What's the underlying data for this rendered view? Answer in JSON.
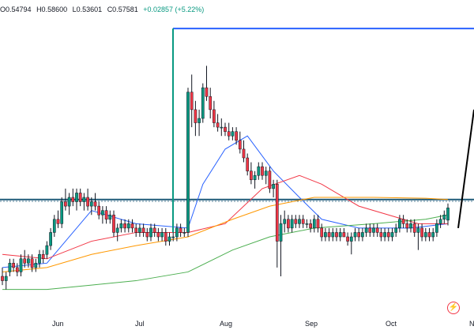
{
  "legend": {
    "open": "O0.54794",
    "high": "H0.58600",
    "low": "L0.53601",
    "close": "C0.57581",
    "change": "+0.02857 (+5.22%)"
  },
  "x_axis": [
    "Jun",
    "Jul",
    "Aug",
    "Sep",
    "Oct",
    "N"
  ],
  "colors": {
    "up": "#089981",
    "down": "#f23645",
    "wick": "#131722",
    "ma_blue": "#2962ff",
    "ma_red": "#f23645",
    "ma_orange": "#ff9800",
    "ma_green": "#4caf50",
    "drawing_blue": "#2962ff",
    "hline": "#1e5a78",
    "trendline": "#000000"
  },
  "icons": {
    "bolt": "lightning-bolt-icon"
  },
  "chart_data": {
    "type": "candlestick",
    "price_range": [
      0.33,
      1.05
    ],
    "date_range": [
      "May 9",
      "Nov 1"
    ],
    "x_labels": [
      "Jun",
      "Jul",
      "Aug",
      "Sep",
      "Oct",
      "N"
    ],
    "last_candle": {
      "open": 0.54794,
      "high": 0.586,
      "low": 0.53601,
      "close": 0.57581,
      "change": 0.02857,
      "change_pct": 5.22
    },
    "horizontal_levels": [
      0.595,
      0.591,
      0.985
    ],
    "rectangle": {
      "start": "Jul 11",
      "top": 0.985
    },
    "trendline": {
      "from": [
        "Oct 27",
        0.53
      ],
      "to": [
        "Nov 1",
        0.8
      ]
    },
    "candles": [
      [
        0.42,
        0.44,
        0.4,
        0.41
      ],
      [
        0.41,
        0.43,
        0.39,
        0.42
      ],
      [
        0.43,
        0.46,
        0.42,
        0.45
      ],
      [
        0.45,
        0.46,
        0.43,
        0.44
      ],
      [
        0.44,
        0.45,
        0.42,
        0.43
      ],
      [
        0.43,
        0.47,
        0.42,
        0.46
      ],
      [
        0.46,
        0.48,
        0.44,
        0.45
      ],
      [
        0.45,
        0.47,
        0.44,
        0.46
      ],
      [
        0.46,
        0.47,
        0.43,
        0.44
      ],
      [
        0.44,
        0.46,
        0.43,
        0.45
      ],
      [
        0.45,
        0.48,
        0.44,
        0.47
      ],
      [
        0.47,
        0.48,
        0.45,
        0.46
      ],
      [
        0.47,
        0.5,
        0.46,
        0.49
      ],
      [
        0.49,
        0.53,
        0.48,
        0.52
      ],
      [
        0.52,
        0.56,
        0.51,
        0.55
      ],
      [
        0.55,
        0.57,
        0.53,
        0.54
      ],
      [
        0.54,
        0.6,
        0.53,
        0.59
      ],
      [
        0.59,
        0.62,
        0.57,
        0.58
      ],
      [
        0.58,
        0.61,
        0.56,
        0.6
      ],
      [
        0.6,
        0.62,
        0.58,
        0.59
      ],
      [
        0.59,
        0.62,
        0.57,
        0.61
      ],
      [
        0.61,
        0.62,
        0.58,
        0.59
      ],
      [
        0.59,
        0.61,
        0.57,
        0.6
      ],
      [
        0.6,
        0.62,
        0.57,
        0.58
      ],
      [
        0.58,
        0.6,
        0.56,
        0.59
      ],
      [
        0.59,
        0.61,
        0.57,
        0.58
      ],
      [
        0.58,
        0.59,
        0.55,
        0.56
      ],
      [
        0.56,
        0.58,
        0.54,
        0.57
      ],
      [
        0.57,
        0.58,
        0.54,
        0.55
      ],
      [
        0.55,
        0.57,
        0.54,
        0.56
      ],
      [
        0.56,
        0.57,
        0.51,
        0.52
      ],
      [
        0.52,
        0.54,
        0.5,
        0.53
      ],
      [
        0.53,
        0.55,
        0.52,
        0.54
      ],
      [
        0.54,
        0.55,
        0.52,
        0.53
      ],
      [
        0.53,
        0.55,
        0.52,
        0.54
      ],
      [
        0.54,
        0.55,
        0.52,
        0.53
      ],
      [
        0.53,
        0.54,
        0.51,
        0.52
      ],
      [
        0.52,
        0.54,
        0.51,
        0.53
      ],
      [
        0.53,
        0.54,
        0.51,
        0.52
      ],
      [
        0.52,
        0.53,
        0.5,
        0.51
      ],
      [
        0.51,
        0.54,
        0.5,
        0.53
      ],
      [
        0.53,
        0.54,
        0.51,
        0.52
      ],
      [
        0.52,
        0.53,
        0.5,
        0.51
      ],
      [
        0.51,
        0.53,
        0.5,
        0.52
      ],
      [
        0.52,
        0.53,
        0.49,
        0.5
      ],
      [
        0.5,
        0.52,
        0.49,
        0.51
      ],
      [
        0.51,
        0.52,
        0.5,
        0.51
      ],
      [
        0.51,
        0.54,
        0.5,
        0.53
      ],
      [
        0.53,
        0.54,
        0.51,
        0.52
      ],
      [
        0.52,
        0.53,
        0.51,
        0.52
      ],
      [
        0.52,
        0.85,
        0.51,
        0.84
      ],
      [
        0.84,
        0.88,
        0.76,
        0.8
      ],
      [
        0.8,
        0.82,
        0.74,
        0.77
      ],
      [
        0.77,
        0.8,
        0.74,
        0.78
      ],
      [
        0.78,
        0.86,
        0.77,
        0.85
      ],
      [
        0.85,
        0.9,
        0.82,
        0.83
      ],
      [
        0.83,
        0.85,
        0.78,
        0.8
      ],
      [
        0.8,
        0.82,
        0.76,
        0.77
      ],
      [
        0.77,
        0.79,
        0.75,
        0.76
      ],
      [
        0.76,
        0.78,
        0.74,
        0.76
      ],
      [
        0.76,
        0.77,
        0.74,
        0.75
      ],
      [
        0.75,
        0.77,
        0.73,
        0.74
      ],
      [
        0.74,
        0.76,
        0.73,
        0.75
      ],
      [
        0.75,
        0.76,
        0.72,
        0.73
      ],
      [
        0.73,
        0.75,
        0.7,
        0.71
      ],
      [
        0.71,
        0.73,
        0.68,
        0.69
      ],
      [
        0.69,
        0.7,
        0.65,
        0.66
      ],
      [
        0.66,
        0.68,
        0.63,
        0.64
      ],
      [
        0.64,
        0.66,
        0.62,
        0.65
      ],
      [
        0.65,
        0.68,
        0.64,
        0.67
      ],
      [
        0.67,
        0.68,
        0.64,
        0.65
      ],
      [
        0.65,
        0.67,
        0.63,
        0.66
      ],
      [
        0.66,
        0.67,
        0.61,
        0.62
      ],
      [
        0.62,
        0.64,
        0.6,
        0.63
      ],
      [
        0.63,
        0.64,
        0.44,
        0.5
      ],
      [
        0.5,
        0.56,
        0.42,
        0.54
      ],
      [
        0.54,
        0.57,
        0.52,
        0.55
      ],
      [
        0.55,
        0.56,
        0.52,
        0.53
      ],
      [
        0.53,
        0.56,
        0.52,
        0.55
      ],
      [
        0.55,
        0.56,
        0.53,
        0.54
      ],
      [
        0.54,
        0.56,
        0.53,
        0.55
      ],
      [
        0.55,
        0.56,
        0.53,
        0.54
      ],
      [
        0.54,
        0.55,
        0.53,
        0.54
      ],
      [
        0.54,
        0.55,
        0.52,
        0.53
      ],
      [
        0.53,
        0.56,
        0.52,
        0.55
      ],
      [
        0.55,
        0.56,
        0.52,
        0.53
      ],
      [
        0.53,
        0.54,
        0.5,
        0.51
      ],
      [
        0.51,
        0.53,
        0.5,
        0.52
      ],
      [
        0.52,
        0.53,
        0.5,
        0.51
      ],
      [
        0.51,
        0.53,
        0.5,
        0.52
      ],
      [
        0.52,
        0.53,
        0.5,
        0.51
      ],
      [
        0.51,
        0.53,
        0.5,
        0.52
      ],
      [
        0.52,
        0.53,
        0.51,
        0.51
      ],
      [
        0.51,
        0.52,
        0.49,
        0.5
      ],
      [
        0.5,
        0.52,
        0.47,
        0.51
      ],
      [
        0.51,
        0.53,
        0.5,
        0.52
      ],
      [
        0.52,
        0.53,
        0.5,
        0.51
      ],
      [
        0.51,
        0.53,
        0.5,
        0.52
      ],
      [
        0.52,
        0.54,
        0.51,
        0.53
      ],
      [
        0.53,
        0.54,
        0.51,
        0.52
      ],
      [
        0.52,
        0.54,
        0.51,
        0.53
      ],
      [
        0.53,
        0.54,
        0.51,
        0.52
      ],
      [
        0.52,
        0.53,
        0.5,
        0.51
      ],
      [
        0.51,
        0.53,
        0.5,
        0.52
      ],
      [
        0.52,
        0.53,
        0.5,
        0.51
      ],
      [
        0.51,
        0.53,
        0.5,
        0.52
      ],
      [
        0.52,
        0.54,
        0.51,
        0.53
      ],
      [
        0.53,
        0.56,
        0.52,
        0.55
      ],
      [
        0.55,
        0.56,
        0.53,
        0.54
      ],
      [
        0.54,
        0.55,
        0.52,
        0.53
      ],
      [
        0.53,
        0.55,
        0.52,
        0.54
      ],
      [
        0.54,
        0.55,
        0.51,
        0.52
      ],
      [
        0.52,
        0.54,
        0.48,
        0.53
      ],
      [
        0.53,
        0.54,
        0.5,
        0.51
      ],
      [
        0.51,
        0.53,
        0.5,
        0.52
      ],
      [
        0.52,
        0.53,
        0.5,
        0.51
      ],
      [
        0.51,
        0.53,
        0.5,
        0.52
      ],
      [
        0.52,
        0.55,
        0.51,
        0.54
      ],
      [
        0.54,
        0.56,
        0.53,
        0.55
      ],
      [
        0.55,
        0.57,
        0.54,
        0.56
      ],
      [
        0.548,
        0.586,
        0.536,
        0.576
      ]
    ],
    "moving_averages": [
      {
        "color": "blue",
        "points": [
          [
            0,
            0.44
          ],
          [
            12,
            0.45
          ],
          [
            24,
            0.57
          ],
          [
            36,
            0.54
          ],
          [
            50,
            0.53
          ],
          [
            54,
            0.63
          ],
          [
            60,
            0.71
          ],
          [
            66,
            0.74
          ],
          [
            73,
            0.66
          ],
          [
            80,
            0.6
          ],
          [
            86,
            0.55
          ],
          [
            96,
            0.53
          ],
          [
            110,
            0.53
          ],
          [
            120,
            0.54
          ]
        ]
      },
      {
        "color": "red",
        "points": [
          [
            0,
            0.47
          ],
          [
            12,
            0.46
          ],
          [
            24,
            0.5
          ],
          [
            36,
            0.52
          ],
          [
            50,
            0.52
          ],
          [
            60,
            0.54
          ],
          [
            70,
            0.62
          ],
          [
            80,
            0.65
          ],
          [
            86,
            0.63
          ],
          [
            96,
            0.58
          ],
          [
            104,
            0.56
          ],
          [
            112,
            0.54
          ],
          [
            120,
            0.54
          ]
        ]
      },
      {
        "color": "orange",
        "points": [
          [
            0,
            0.43
          ],
          [
            12,
            0.44
          ],
          [
            24,
            0.47
          ],
          [
            36,
            0.49
          ],
          [
            50,
            0.51
          ],
          [
            62,
            0.55
          ],
          [
            72,
            0.58
          ],
          [
            84,
            0.6
          ],
          [
            100,
            0.6
          ],
          [
            114,
            0.598
          ],
          [
            120,
            0.595
          ]
        ]
      },
      {
        "color": "green",
        "points": [
          [
            0,
            0.39
          ],
          [
            12,
            0.39
          ],
          [
            24,
            0.4
          ],
          [
            36,
            0.41
          ],
          [
            50,
            0.43
          ],
          [
            62,
            0.48
          ],
          [
            72,
            0.51
          ],
          [
            84,
            0.53
          ],
          [
            100,
            0.54
          ],
          [
            114,
            0.55
          ],
          [
            120,
            0.56
          ]
        ]
      }
    ]
  }
}
